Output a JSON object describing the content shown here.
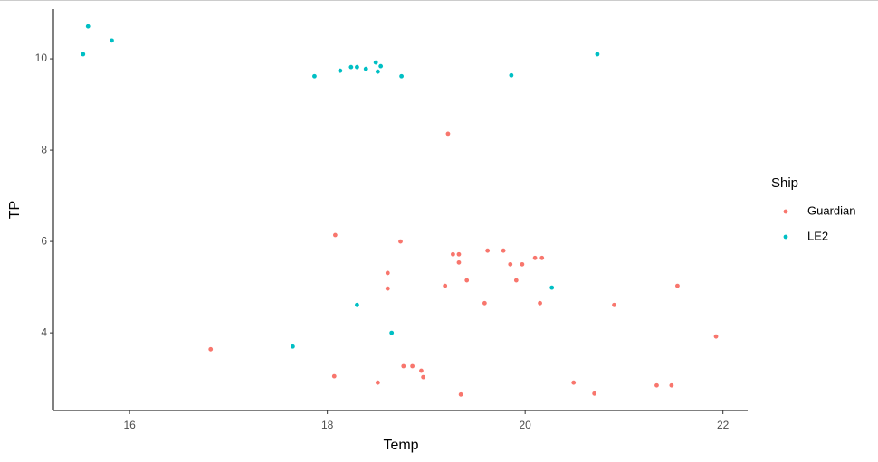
{
  "chart_data": {
    "type": "scatter",
    "x_label": "Temp",
    "y_label": "TP",
    "legend_title": "Ship",
    "legend": "right",
    "xlim": [
      15.23,
      22.25
    ],
    "ylim": [
      2.3,
      11.09
    ],
    "xticks": [
      16,
      18,
      20,
      22
    ],
    "yticks": [
      4,
      6,
      8,
      10
    ],
    "grid": false,
    "series": [
      {
        "name": "Guardian",
        "color": "#f8766d",
        "x": [
          19.22,
          18.08,
          18.74,
          18.61,
          18.61,
          16.82,
          18.07,
          18.51,
          18.77,
          18.86,
          18.95,
          18.97,
          19.35,
          19.19,
          19.27,
          19.33,
          19.33,
          19.41,
          19.59,
          19.62,
          19.78,
          19.85,
          19.91,
          19.97,
          20.1,
          20.17,
          20.15,
          20.49,
          20.7,
          20.9,
          21.33,
          21.48,
          21.54,
          21.93
        ],
        "y": [
          8.36,
          6.14,
          6.0,
          5.31,
          4.97,
          3.64,
          3.05,
          2.91,
          3.27,
          3.27,
          3.17,
          3.03,
          2.65,
          5.03,
          5.72,
          5.72,
          5.54,
          5.15,
          4.65,
          5.8,
          5.8,
          5.5,
          5.15,
          5.5,
          5.64,
          5.64,
          4.65,
          2.91,
          2.67,
          4.61,
          2.85,
          2.85,
          5.03,
          3.92
        ]
      },
      {
        "name": "LE2",
        "color": "#00bfc4",
        "x": [
          15.53,
          15.58,
          15.82,
          17.87,
          18.13,
          18.24,
          18.3,
          18.39,
          18.49,
          18.51,
          18.54,
          18.75,
          19.86,
          20.73,
          18.3,
          17.65,
          18.65,
          20.27
        ],
        "y": [
          10.1,
          10.71,
          10.4,
          9.62,
          9.74,
          9.82,
          9.82,
          9.78,
          9.92,
          9.72,
          9.84,
          9.62,
          9.64,
          10.1,
          4.61,
          3.7,
          4.0,
          4.99
        ]
      }
    ]
  }
}
